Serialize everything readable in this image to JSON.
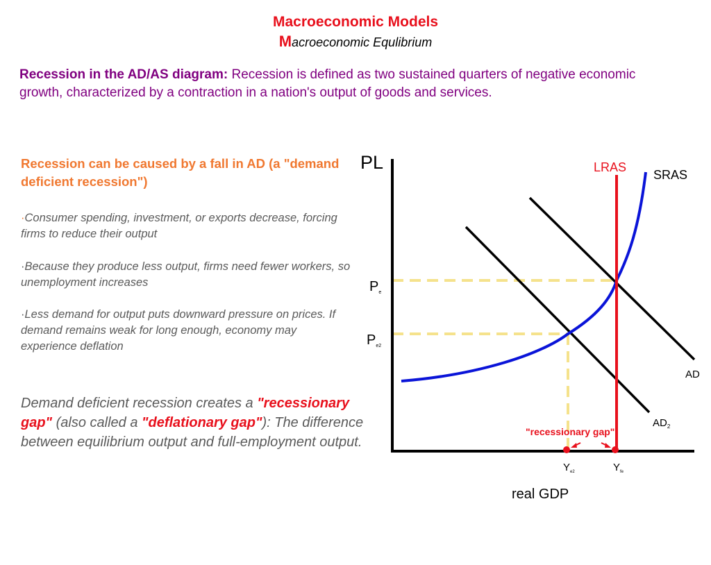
{
  "header": {
    "title": "Macroeconomic Models",
    "subtitle_initial": "M",
    "subtitle_rest": "acroeconomic Equlibrium"
  },
  "intro": {
    "lead": "Recession in the AD/AS diagram:",
    "text": " Recession is defined as two sustained quarters of negative economic growth, characterized by a contraction in a nation's output of goods and services."
  },
  "cause": {
    "heading": "Recession can be caused by a fall in AD (a \"demand deficient recession\")"
  },
  "bullets": [
    {
      "dot": "·",
      "text": "Consumer spending, investment, or exports decrease, forcing firms to reduce their output"
    },
    {
      "dot": "·",
      "text": "Because they produce less output, firms need fewer workers, so unemployment increases"
    },
    {
      "dot": "·",
      "text": "Less demand for output puts downward pressure on prices. If demand remains weak for long enough, economy may experience deflation"
    }
  ],
  "gap_paragraph": {
    "part1": "Demand deficient recession creates a ",
    "term1": "\"recessionary gap\"",
    "part2": " (also called a ",
    "term2": "\"deflationary gap\"",
    "part3": "): The difference between equilibrium output and full-employment output."
  },
  "diagram": {
    "y_axis_label": "PL",
    "x_axis_label": "real GDP",
    "lras_label": "LRAS",
    "sras_label": "SRAS",
    "ad_label": "AD",
    "ad2_label_main": "AD",
    "ad2_label_sub": "2",
    "pe_main": "P",
    "pe_sub": "e",
    "pe2_main": "P",
    "pe2_sub": "e2",
    "ye2_main": "Y",
    "ye2_sub": "e2",
    "yfe_main": "Y",
    "yfe_sub": "fe",
    "gap_label": "\"recessionary gap\"",
    "colors": {
      "lras": "#e8101c",
      "sras": "#0a14d8",
      "guides": "#f5e28c",
      "gap": "#e8101c"
    }
  }
}
